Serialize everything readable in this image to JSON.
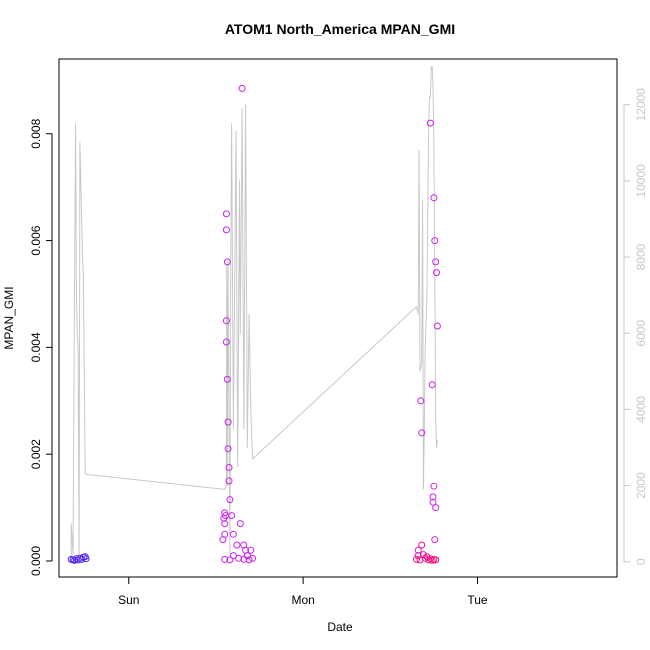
{
  "chart_data": {
    "type": "scatter",
    "title": "ATOM1 North_America MPAN_GMI",
    "xlabel": "Date",
    "ylabel": "MPAN_GMI",
    "x_unit": "days",
    "xlim": [
      -0.4,
      2.8
    ],
    "x_ticks": [
      {
        "value": 0,
        "label": "Sun"
      },
      {
        "value": 1,
        "label": "Mon"
      },
      {
        "value": 2,
        "label": "Tue"
      }
    ],
    "ylim": [
      -0.0003,
      0.0094
    ],
    "y_ticks": [
      "0.000",
      "0.002",
      "0.004",
      "0.006",
      "0.008"
    ],
    "y2lim": [
      -400,
      13200
    ],
    "y2_ticks": [
      "0",
      "2000",
      "4000",
      "6000",
      "8000",
      "10000",
      "12000"
    ],
    "grid": false,
    "colors": {
      "line": "#c8c8c8",
      "point_early": "#5522ee",
      "point_mid": "#cc22ee",
      "point_late": "#ee1188"
    },
    "series": [
      {
        "axis": "right",
        "style": "line",
        "points": [
          [
            -0.33,
            0
          ],
          [
            -0.33,
            1000
          ],
          [
            -0.32,
            200
          ],
          [
            -0.31,
            8000
          ],
          [
            -0.305,
            11500
          ],
          [
            -0.3,
            7000
          ],
          [
            -0.295,
            6000
          ],
          [
            -0.29,
            5500
          ],
          [
            -0.285,
            0
          ],
          [
            -0.28,
            11000
          ],
          [
            -0.275,
            10000
          ],
          [
            -0.27,
            9000
          ],
          [
            -0.265,
            8000
          ],
          [
            -0.26,
            7500
          ],
          [
            -0.25,
            2300
          ],
          [
            0.55,
            1900
          ],
          [
            0.56,
            2000
          ],
          [
            0.562,
            7800
          ],
          [
            0.565,
            2000
          ],
          [
            0.57,
            7900
          ],
          [
            0.58,
            200
          ],
          [
            0.585,
            8000
          ],
          [
            0.59,
            11500
          ],
          [
            0.6,
            3500
          ],
          [
            0.615,
            11300
          ],
          [
            0.625,
            2500
          ],
          [
            0.635,
            10000
          ],
          [
            0.64,
            6000
          ],
          [
            0.65,
            11900
          ],
          [
            0.66,
            3500
          ],
          [
            0.67,
            12000
          ],
          [
            0.68,
            3000
          ],
          [
            0.69,
            6500
          ],
          [
            0.7,
            4000
          ],
          [
            0.71,
            2700
          ],
          [
            1.65,
            6700
          ],
          [
            1.66,
            6500
          ],
          [
            1.665,
            10800
          ],
          [
            1.67,
            5000
          ],
          [
            1.68,
            5200
          ],
          [
            1.685,
            9500
          ],
          [
            1.69,
            1900
          ],
          [
            1.695,
            3500
          ],
          [
            1.7,
            5600
          ],
          [
            1.71,
            7000
          ],
          [
            1.72,
            11500
          ],
          [
            1.725,
            12200
          ],
          [
            1.73,
            12200
          ],
          [
            1.735,
            13000
          ],
          [
            1.74,
            13000
          ],
          [
            1.745,
            12500
          ],
          [
            1.75,
            11000
          ],
          [
            1.76,
            3800
          ],
          [
            1.765,
            3000
          ],
          [
            1.77,
            3200
          ]
        ]
      },
      {
        "axis": "left",
        "style": "points",
        "color_key": "point_early",
        "points": [
          [
            -0.33,
            3e-05
          ],
          [
            -0.32,
            2e-05
          ],
          [
            -0.31,
            1e-05
          ],
          [
            -0.3,
            4e-05
          ],
          [
            -0.29,
            2e-05
          ],
          [
            -0.28,
            5e-05
          ],
          [
            -0.27,
            3e-05
          ],
          [
            -0.26,
            7e-05
          ],
          [
            -0.25,
            8e-05
          ],
          [
            -0.245,
            4e-05
          ]
        ]
      },
      {
        "axis": "left",
        "style": "points",
        "color_key": "point_mid",
        "points": [
          [
            0.54,
            0.0004
          ],
          [
            0.545,
            0.0008
          ],
          [
            0.55,
            0.0009
          ],
          [
            0.55,
            0.0007
          ],
          [
            0.55,
            0.0005
          ],
          [
            0.555,
            0.00085
          ],
          [
            0.56,
            0.0065
          ],
          [
            0.56,
            0.0062
          ],
          [
            0.56,
            0.0045
          ],
          [
            0.56,
            0.0041
          ],
          [
            0.565,
            0.0056
          ],
          [
            0.565,
            0.0034
          ],
          [
            0.57,
            0.0026
          ],
          [
            0.57,
            0.0021
          ],
          [
            0.575,
            0.00175
          ],
          [
            0.575,
            0.0015
          ],
          [
            0.58,
            0.00115
          ],
          [
            0.59,
            0.00085
          ],
          [
            0.6,
            0.0005
          ],
          [
            0.62,
            0.0003
          ],
          [
            0.64,
            0.0007
          ],
          [
            0.65,
            0.00885
          ],
          [
            0.66,
            0.0003
          ],
          [
            0.67,
            0.0002
          ],
          [
            0.68,
            0.0001
          ],
          [
            0.7,
            0.0002
          ],
          [
            0.71,
            5e-05
          ],
          [
            0.55,
            3e-05
          ],
          [
            0.58,
            2e-05
          ],
          [
            0.6,
            0.0001
          ],
          [
            0.63,
            5e-05
          ],
          [
            0.66,
            3e-05
          ],
          [
            0.69,
            2e-05
          ]
        ]
      },
      {
        "axis": "left",
        "style": "points",
        "color_key": "point_late",
        "points": [
          [
            1.65,
            3e-05
          ],
          [
            1.66,
            0.0001
          ],
          [
            1.67,
            2e-05
          ],
          [
            1.68,
            0.0003
          ],
          [
            1.69,
            0.00012
          ],
          [
            1.7,
            5e-05
          ],
          [
            1.71,
            8e-05
          ],
          [
            1.72,
            2e-05
          ],
          [
            1.73,
            4e-05
          ],
          [
            1.74,
            1e-05
          ],
          [
            1.75,
            3e-05
          ],
          [
            1.76,
            2e-05
          ]
        ]
      },
      {
        "axis": "left",
        "style": "points",
        "color_key": "point_mid",
        "points": [
          [
            1.675,
            0.003
          ],
          [
            1.68,
            0.0024
          ],
          [
            1.73,
            0.0082
          ],
          [
            1.75,
            0.0068
          ],
          [
            1.755,
            0.006
          ],
          [
            1.76,
            0.0056
          ],
          [
            1.765,
            0.0054
          ],
          [
            1.77,
            0.0044
          ],
          [
            1.74,
            0.0033
          ],
          [
            1.745,
            0.0011
          ],
          [
            1.75,
            0.0014
          ],
          [
            1.755,
            0.0004
          ],
          [
            1.745,
            0.0012
          ],
          [
            1.76,
            0.001
          ],
          [
            1.66,
            0.0002
          ]
        ]
      }
    ]
  }
}
